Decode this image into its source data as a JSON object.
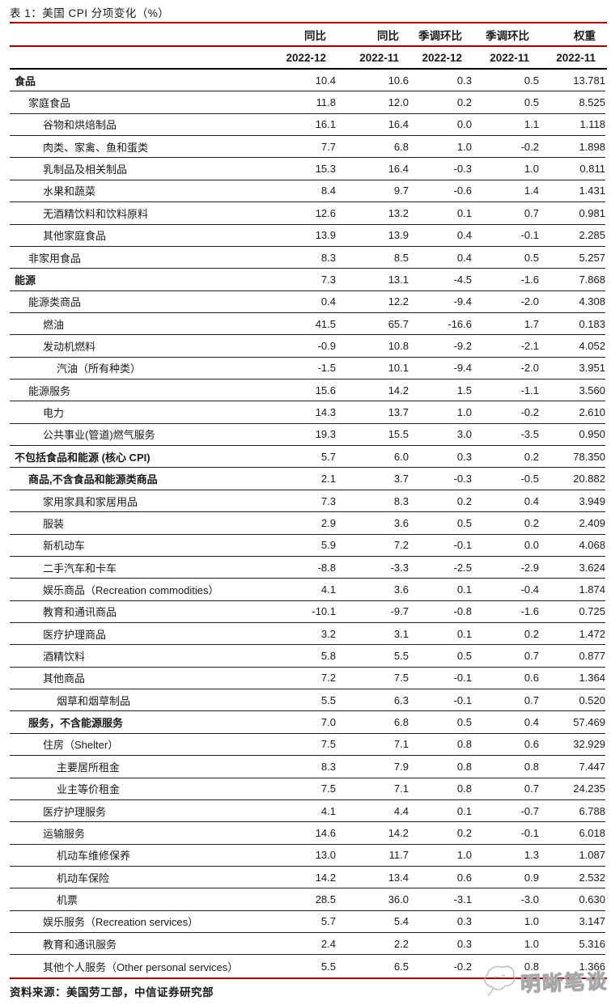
{
  "header": {
    "col_groups": [
      "同比",
      "同比",
      "季调环比",
      "季调环比",
      "权重"
    ],
    "col_periods": [
      "2022-12",
      "2022-11",
      "2022-12",
      "2022-11",
      "2022-11"
    ]
  },
  "chart_data": {
    "type": "table",
    "title": "表 1：美国 CPI 分项变化（%）",
    "columns": [
      "同比 2022-12",
      "同比 2022-11",
      "季调环比 2022-12",
      "季调环比 2022-11",
      "权重 2022-11"
    ],
    "rows": [
      {
        "label": "食品",
        "indent": 0,
        "bold": true,
        "values": [
          "10.4",
          "10.6",
          "0.3",
          "0.5",
          "13.781"
        ]
      },
      {
        "label": "家庭食品",
        "indent": 1,
        "bold": false,
        "values": [
          "11.8",
          "12.0",
          "0.2",
          "0.5",
          "8.525"
        ]
      },
      {
        "label": "谷物和烘焙制品",
        "indent": 2,
        "bold": false,
        "values": [
          "16.1",
          "16.4",
          "0.0",
          "1.1",
          "1.118"
        ]
      },
      {
        "label": "肉类、家禽、鱼和蛋类",
        "indent": 2,
        "bold": false,
        "values": [
          "7.7",
          "6.8",
          "1.0",
          "-0.2",
          "1.898"
        ]
      },
      {
        "label": "乳制品及相关制品",
        "indent": 2,
        "bold": false,
        "values": [
          "15.3",
          "16.4",
          "-0.3",
          "1.0",
          "0.811"
        ]
      },
      {
        "label": "水果和蔬菜",
        "indent": 2,
        "bold": false,
        "values": [
          "8.4",
          "9.7",
          "-0.6",
          "1.4",
          "1.431"
        ]
      },
      {
        "label": "无酒精饮料和饮料原料",
        "indent": 2,
        "bold": false,
        "values": [
          "12.6",
          "13.2",
          "0.1",
          "0.7",
          "0.981"
        ]
      },
      {
        "label": "其他家庭食品",
        "indent": 2,
        "bold": false,
        "values": [
          "13.9",
          "13.9",
          "0.4",
          "-0.1",
          "2.285"
        ]
      },
      {
        "label": "非家用食品",
        "indent": 1,
        "bold": false,
        "values": [
          "8.3",
          "8.5",
          "0.4",
          "0.5",
          "5.257"
        ]
      },
      {
        "label": "能源",
        "indent": 0,
        "bold": true,
        "values": [
          "7.3",
          "13.1",
          "-4.5",
          "-1.6",
          "7.868"
        ]
      },
      {
        "label": "能源类商品",
        "indent": 1,
        "bold": false,
        "values": [
          "0.4",
          "12.2",
          "-9.4",
          "-2.0",
          "4.308"
        ]
      },
      {
        "label": "燃油",
        "indent": 2,
        "bold": false,
        "values": [
          "41.5",
          "65.7",
          "-16.6",
          "1.7",
          "0.183"
        ]
      },
      {
        "label": "发动机燃料",
        "indent": 2,
        "bold": false,
        "values": [
          "-0.9",
          "10.8",
          "-9.2",
          "-2.1",
          "4.052"
        ]
      },
      {
        "label": "汽油（所有种类）",
        "indent": 3,
        "bold": false,
        "values": [
          "-1.5",
          "10.1",
          "-9.4",
          "-2.0",
          "3.951"
        ]
      },
      {
        "label": "能源服务",
        "indent": 1,
        "bold": false,
        "values": [
          "15.6",
          "14.2",
          "1.5",
          "-1.1",
          "3.560"
        ]
      },
      {
        "label": "电力",
        "indent": 2,
        "bold": false,
        "values": [
          "14.3",
          "13.7",
          "1.0",
          "-0.2",
          "2.610"
        ]
      },
      {
        "label": "公共事业(管道)燃气服务",
        "indent": 2,
        "bold": false,
        "values": [
          "19.3",
          "15.5",
          "3.0",
          "-3.5",
          "0.950"
        ]
      },
      {
        "label": "不包括食品和能源 (核心 CPI)",
        "indent": 0,
        "bold": true,
        "values": [
          "5.7",
          "6.0",
          "0.3",
          "0.2",
          "78.350"
        ]
      },
      {
        "label": "商品,不含食品和能源类商品",
        "indent": 1,
        "bold": true,
        "values": [
          "2.1",
          "3.7",
          "-0.3",
          "-0.5",
          "20.882"
        ]
      },
      {
        "label": "家用家具和家居用品",
        "indent": 2,
        "bold": false,
        "values": [
          "7.3",
          "8.3",
          "0.2",
          "0.4",
          "3.949"
        ]
      },
      {
        "label": "服装",
        "indent": 2,
        "bold": false,
        "values": [
          "2.9",
          "3.6",
          "0.5",
          "0.2",
          "2.409"
        ]
      },
      {
        "label": "新机动车",
        "indent": 2,
        "bold": false,
        "values": [
          "5.9",
          "7.2",
          "-0.1",
          "0.0",
          "4.068"
        ]
      },
      {
        "label": "二手汽车和卡车",
        "indent": 2,
        "bold": false,
        "values": [
          "-8.8",
          "-3.3",
          "-2.5",
          "-2.9",
          "3.624"
        ]
      },
      {
        "label": "娱乐商品（Recreation commodities）",
        "indent": 2,
        "bold": false,
        "values": [
          "4.1",
          "3.6",
          "0.1",
          "-0.4",
          "1.874"
        ]
      },
      {
        "label": "教育和通讯商品",
        "indent": 2,
        "bold": false,
        "values": [
          "-10.1",
          "-9.7",
          "-0.8",
          "-1.6",
          "0.725"
        ]
      },
      {
        "label": "医疗护理商品",
        "indent": 2,
        "bold": false,
        "values": [
          "3.2",
          "3.1",
          "0.1",
          "0.2",
          "1.472"
        ]
      },
      {
        "label": "酒精饮料",
        "indent": 2,
        "bold": false,
        "values": [
          "5.8",
          "5.5",
          "0.5",
          "0.7",
          "0.877"
        ]
      },
      {
        "label": "其他商品",
        "indent": 2,
        "bold": false,
        "values": [
          "7.2",
          "7.5",
          "-0.1",
          "0.6",
          "1.364"
        ]
      },
      {
        "label": "烟草和烟草制品",
        "indent": 3,
        "bold": false,
        "values": [
          "5.5",
          "6.3",
          "-0.1",
          "0.7",
          "0.520"
        ]
      },
      {
        "label": "服务，不含能源服务",
        "indent": 1,
        "bold": true,
        "values": [
          "7.0",
          "6.8",
          "0.5",
          "0.4",
          "57.469"
        ]
      },
      {
        "label": "住房（Shelter）",
        "indent": 2,
        "bold": false,
        "values": [
          "7.5",
          "7.1",
          "0.8",
          "0.6",
          "32.929"
        ]
      },
      {
        "label": "主要居所租金",
        "indent": 3,
        "bold": false,
        "values": [
          "8.3",
          "7.9",
          "0.8",
          "0.8",
          "7.447"
        ]
      },
      {
        "label": "业主等价租金",
        "indent": 3,
        "bold": false,
        "values": [
          "7.5",
          "7.1",
          "0.8",
          "0.7",
          "24.235"
        ]
      },
      {
        "label": "医疗护理服务",
        "indent": 2,
        "bold": false,
        "values": [
          "4.1",
          "4.4",
          "0.1",
          "-0.7",
          "6.788"
        ]
      },
      {
        "label": "运输服务",
        "indent": 2,
        "bold": false,
        "values": [
          "14.6",
          "14.2",
          "0.2",
          "-0.1",
          "6.018"
        ]
      },
      {
        "label": "机动车维修保养",
        "indent": 3,
        "bold": false,
        "values": [
          "13.0",
          "11.7",
          "1.0",
          "1.3",
          "1.087"
        ]
      },
      {
        "label": "机动车保险",
        "indent": 3,
        "bold": false,
        "values": [
          "14.2",
          "13.4",
          "0.6",
          "0.9",
          "2.532"
        ]
      },
      {
        "label": "机票",
        "indent": 3,
        "bold": false,
        "values": [
          "28.5",
          "36.0",
          "-3.1",
          "-3.0",
          "0.630"
        ]
      },
      {
        "label": "娱乐服务（Recreation services）",
        "indent": 2,
        "bold": false,
        "values": [
          "5.7",
          "5.4",
          "0.3",
          "1.0",
          "3.147"
        ]
      },
      {
        "label": "教育和通讯服务",
        "indent": 2,
        "bold": false,
        "values": [
          "2.4",
          "2.2",
          "0.3",
          "1.0",
          "5.316"
        ]
      },
      {
        "label": "其他个人服务（Other personal services）",
        "indent": 2,
        "bold": false,
        "values": [
          "5.5",
          "6.5",
          "-0.2",
          "0.8",
          "1.366"
        ]
      }
    ]
  },
  "footer": {
    "source": "资料来源：美国劳工部，中信证券研究部"
  },
  "watermark": {
    "text": "明晰笔谈"
  },
  "colors": {
    "accent_red": "#9e0000",
    "text": "#1a1a1a",
    "separator": "#1f1f1f",
    "watermark_gray": "#a8a8a8"
  }
}
